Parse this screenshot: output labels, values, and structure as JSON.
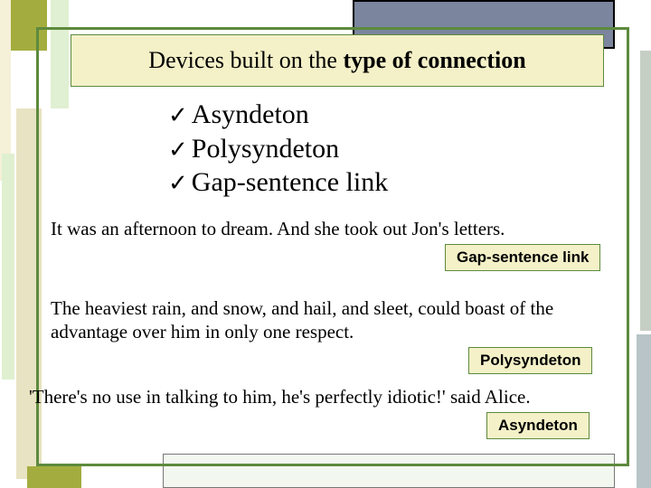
{
  "title": {
    "prefix": "Devices built on the ",
    "bold": "type of connection"
  },
  "bullets": [
    "Asyndeton",
    "Polysyndeton",
    "Gap-sentence link"
  ],
  "examples": {
    "ex1": "It was an afternoon to dream. And she took out Jon's letters.",
    "ex2": "The heaviest rain, and snow, and hail, and sleet, could boast of the advantage over him in only one respect.",
    "ex3": "'There's no use in talking to him, he's perfectly idiotic!' said Alice."
  },
  "tags": {
    "tag1": "Gap-sentence link",
    "tag2": "Polysyndeton",
    "tag3": "Asyndeton"
  },
  "colors": {
    "olive": "#a3ad3f",
    "cream_box": "#f4f1c8",
    "green_border": "#5d8a3d",
    "blue_grey": "#7b859e"
  }
}
